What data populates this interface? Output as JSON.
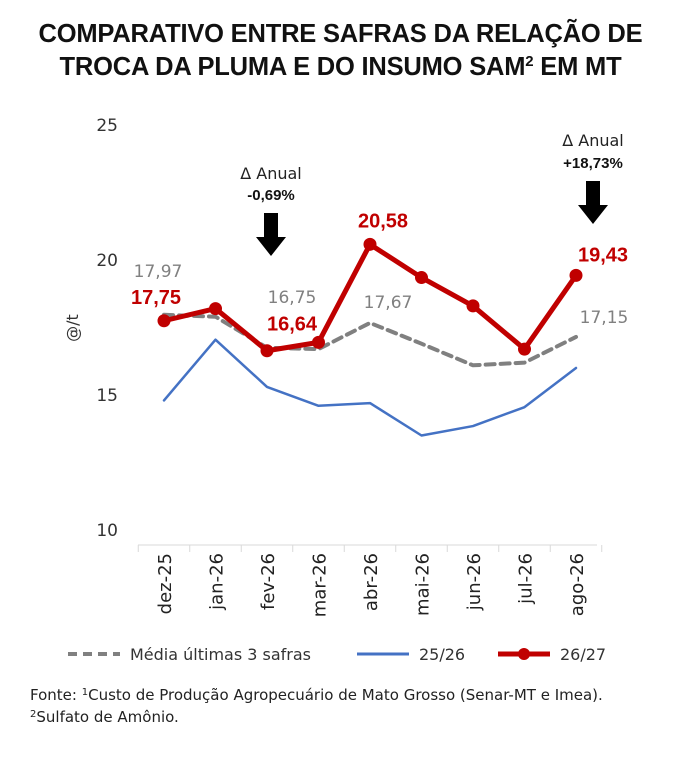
{
  "title": {
    "text_main": "COMPARATIVO ENTRE SAFRAS DA RELAÇÃO DE TROCA DA PLUMA E DO INSUMO SAM",
    "superscript": "2",
    "text_end": " EM MT"
  },
  "chart_data": {
    "type": "line",
    "categories": [
      "dez-25",
      "jan-26",
      "fev-26",
      "mar-26",
      "abr-26",
      "mai-26",
      "jun-26",
      "jul-26",
      "ago-26"
    ],
    "ylabel": "@/t",
    "ylim": [
      10,
      25
    ],
    "yticks": [
      "10",
      "15",
      "20",
      "25"
    ],
    "grid": false,
    "legend_position": "bottom",
    "series": [
      {
        "name": "Média últimas 3 safras",
        "color": "#808080",
        "style": "dashed",
        "values": [
          17.97,
          17.9,
          16.75,
          16.7,
          17.67,
          16.9,
          16.1,
          16.2,
          17.15
        ]
      },
      {
        "name": "25/26",
        "color": "#4472c4",
        "style": "solid",
        "values": [
          14.8,
          17.05,
          15.3,
          14.6,
          14.7,
          13.5,
          13.85,
          14.55,
          16.0
        ]
      },
      {
        "name": "26/27",
        "color": "#c00000",
        "style": "solid-markers",
        "values": [
          17.75,
          18.2,
          16.64,
          16.95,
          20.58,
          19.35,
          18.3,
          16.7,
          19.43
        ]
      }
    ],
    "point_labels": [
      {
        "series": "26/27",
        "index": 0,
        "text": "17,75"
      },
      {
        "series": "26/27",
        "index": 2,
        "text": "16,64"
      },
      {
        "series": "26/27",
        "index": 4,
        "text": "20,58"
      },
      {
        "series": "26/27",
        "index": 8,
        "text": "19,43"
      },
      {
        "series": "Média últimas 3 safras",
        "index": 0,
        "text": "17,97"
      },
      {
        "series": "Média últimas 3 safras",
        "index": 2,
        "text": "16,75"
      },
      {
        "series": "Média últimas 3 safras",
        "index": 4,
        "text": "17,67"
      },
      {
        "series": "Média últimas 3 safras",
        "index": 8,
        "text": "17,15"
      }
    ],
    "annotations": [
      {
        "title": "Δ Anual",
        "value": "-0,69%",
        "arrow": "down-arrow-icon"
      },
      {
        "title": "Δ Anual",
        "value": "+18,73%",
        "arrow": "down-arrow-icon"
      }
    ]
  },
  "footnote": {
    "line1_prefix": "Fonte: ",
    "sup1": "1",
    "line1_text": "Custo de Produção Agropecuário de Mato Grosso (Senar-MT e Imea).",
    "sup2": "2",
    "line2_text": "Sulfato de Amônio."
  }
}
